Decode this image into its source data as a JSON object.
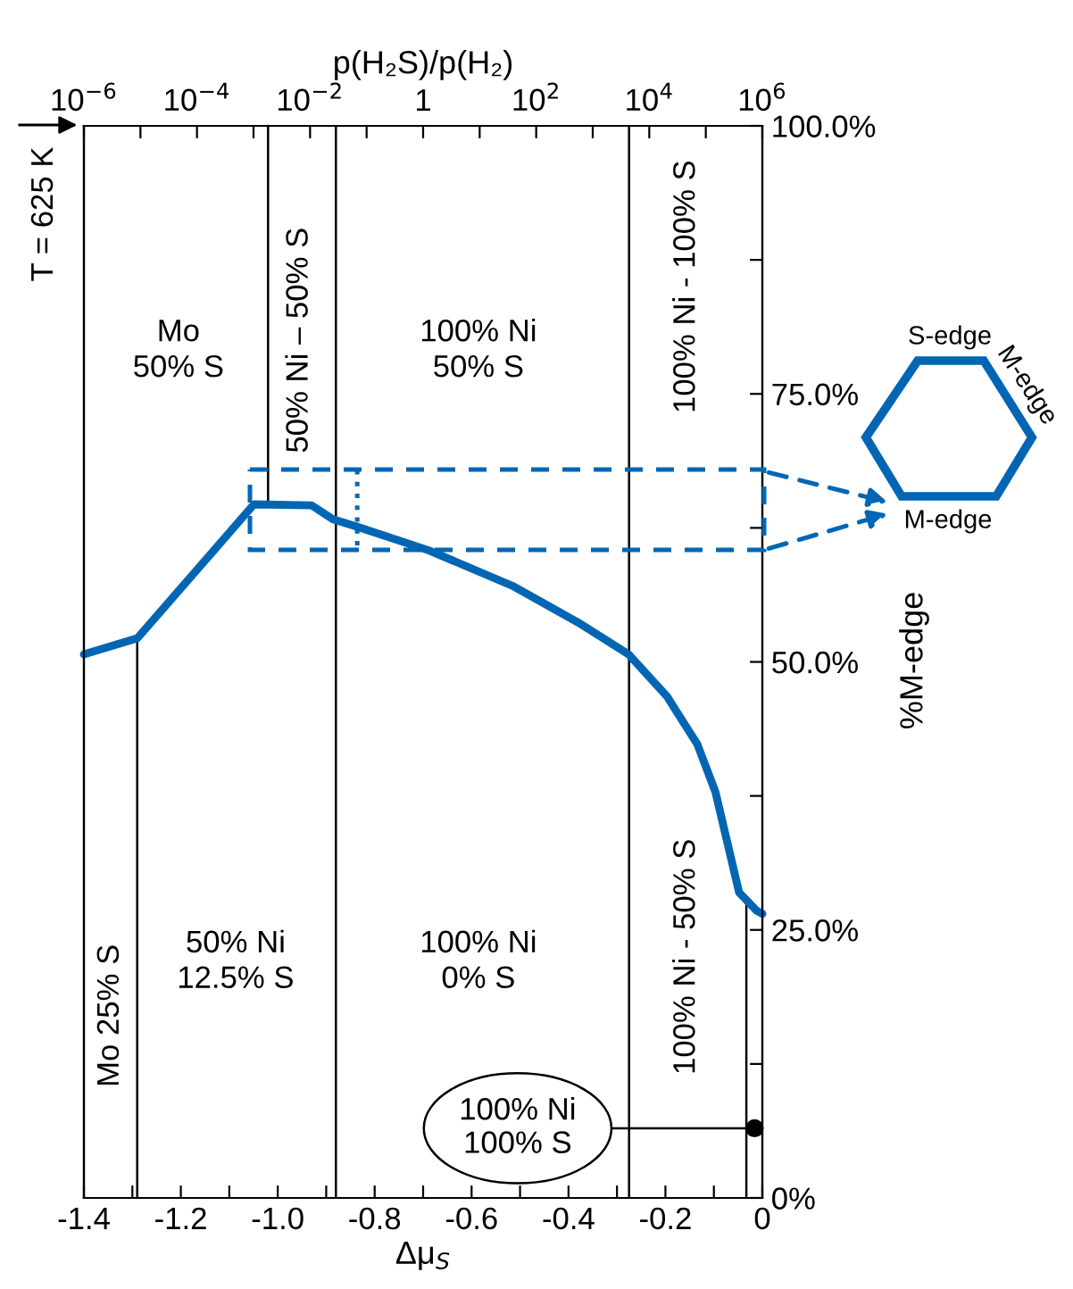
{
  "chart_data": {
    "type": "line",
    "xlabel": "Δμ$_{S}$",
    "x2label": "p(H₂S)/p(H₂)",
    "ylabel": "%M-edge",
    "xlim": [
      -1.4,
      0
    ],
    "x2lim": [
      1e-06,
      1000000.0
    ],
    "ylim": [
      0,
      100
    ],
    "log": "x2",
    "xticks": [
      -1.4,
      {
        "value": -1.3,
        "label": null
      },
      -1.2,
      {
        "value": -1.1,
        "label": null
      },
      {
        "value": -1.0,
        "label": "-1.0"
      },
      {
        "value": -0.9,
        "label": null
      },
      -0.8,
      {
        "value": -0.7,
        "label": null
      },
      -0.6,
      {
        "value": -0.5,
        "label": null
      },
      -0.4,
      {
        "value": -0.3,
        "label": null
      },
      -0.2,
      {
        "value": -0.1,
        "label": null
      },
      0
    ],
    "x2ticks": [
      {
        "value": 1e-06,
        "label": "10$^{−6}$"
      },
      {
        "value": 1e-05,
        "label": null
      },
      {
        "value": 0.0001,
        "label": "10$^{−4}$"
      },
      {
        "value": 0.001,
        "label": null
      },
      {
        "value": 0.01,
        "label": "10$^{−2}$"
      },
      {
        "value": 0.1,
        "label": null
      },
      {
        "value": 1,
        "label": "1"
      },
      {
        "value": 10,
        "label": null
      },
      {
        "value": 100,
        "label": "10$^{2}$"
      },
      {
        "value": 1000,
        "label": null
      },
      {
        "value": 10000.0,
        "label": "10$^{4}$"
      },
      {
        "value": 100000.0,
        "label": null
      },
      {
        "value": 1000000.0,
        "label": "10$^{6}$"
      }
    ],
    "yticks": [
      {
        "value": 0,
        "label": "0%"
      },
      {
        "value": 12.5,
        "label": null
      },
      {
        "value": 25,
        "label": "25.0%"
      },
      {
        "value": 37.5,
        "label": null
      },
      {
        "value": 50,
        "label": "50.0%"
      },
      {
        "value": 62.5,
        "label": null
      },
      {
        "value": 75,
        "label": "75.0%"
      },
      {
        "value": 87.5,
        "label": null
      },
      {
        "value": 100,
        "label": "100.0%"
      }
    ],
    "grid": false,
    "series": [
      {
        "color": "#0066b3",
        "x": [
          -1.4,
          -1.29,
          -1.049,
          -0.93,
          -0.886,
          -0.835,
          -0.688,
          -0.516,
          -0.381,
          -0.276,
          -0.197,
          -0.134,
          -0.097,
          -0.048,
          -0.012,
          0
        ],
        "values": [
          50.7,
          52.2,
          64.7,
          64.6,
          63.3,
          62.6,
          60.4,
          57.1,
          53.7,
          50.7,
          46.8,
          42.3,
          37.9,
          28.5,
          26.8,
          26.5
        ]
      },
      {
        "color": "#000000",
        "x": [
          -1.29,
          -1.29
        ],
        "values": [
          52.2,
          0
        ]
      },
      {
        "color": "#000000",
        "x": [
          -1.02,
          -1.02
        ],
        "values": [
          100,
          64.7
        ]
      },
      {
        "color": "#000000",
        "x": [
          -0.033,
          -0.033
        ],
        "values": [
          27.5,
          0
        ]
      },
      {
        "type": "scatter",
        "color": "#000000",
        "x": [
          -0.016
        ],
        "values": [
          6.5
        ]
      },
      {
        "type": "line",
        "color": "#0066b3",
        "line_style": "dotted",
        "x": [
          -0.836,
          -0.836
        ],
        "values": [
          67.9,
          60.3
        ]
      }
    ],
    "ref_lines": [
      {
        "axis": "x",
        "value": -0.88,
        "color": "#000000"
      },
      {
        "axis": "x",
        "value": -0.275,
        "color": "#000000"
      }
    ],
    "annotations": [
      "T = 625 K",
      "Mo\n50% S",
      "50% Ni – 50% S",
      "100% Ni\n50% S",
      "100% Ni - 100% S",
      "Mo 25% S",
      "50% Ni\n12.5% S",
      "100% Ni\n0% S",
      "100% Ni - 50% S",
      "100% Ni\n100% S",
      "S-edge",
      "M-edge",
      "M-edge"
    ]
  }
}
